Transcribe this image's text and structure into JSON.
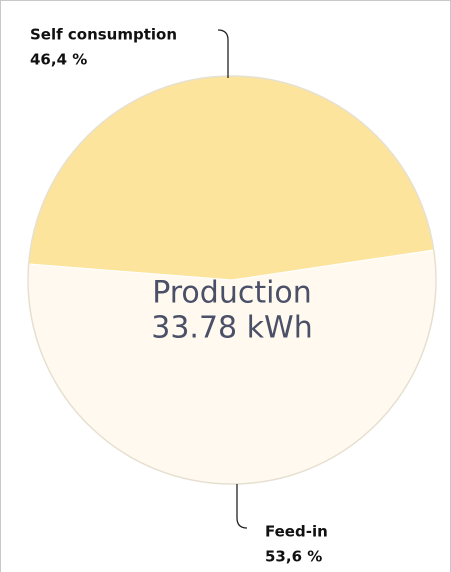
{
  "chart_data": {
    "type": "pie",
    "categories": [
      "Self consumption",
      "Feed-in"
    ],
    "values": [
      46.4,
      53.6
    ],
    "value_labels": [
      "46,4 %",
      "53,6 %"
    ],
    "colors": [
      "#fde49c",
      "#fff9ef"
    ],
    "center_title": "Production",
    "center_value": "33.78 kWh"
  }
}
